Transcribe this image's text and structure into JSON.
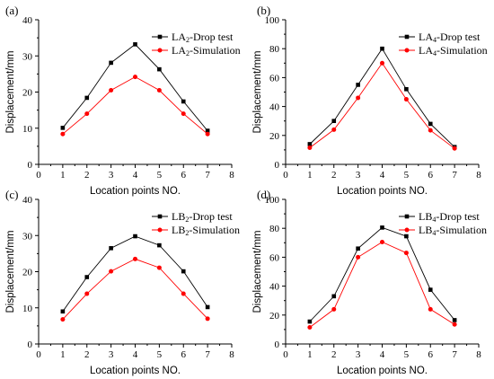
{
  "chart_data": [
    {
      "type": "line",
      "panel": "(a)",
      "xlabel": "Location points NO.",
      "ylabel": "Displacement/mm",
      "xlim": [
        0,
        8
      ],
      "ylim": [
        0,
        40
      ],
      "xticks": [
        0,
        1,
        2,
        3,
        4,
        5,
        6,
        7,
        8
      ],
      "yticks": [
        0,
        10,
        20,
        30,
        40
      ],
      "grid": false,
      "legend_position": "top-right",
      "series": [
        {
          "name": "LA2-Drop test",
          "color": "#000000",
          "marker": "square",
          "x": [
            1,
            2,
            3,
            4,
            5,
            6,
            7
          ],
          "values": [
            10.1,
            18.4,
            28.1,
            33.2,
            26.3,
            17.4,
            9.3
          ]
        },
        {
          "name": "LA2-Simulation",
          "color": "#ff0000",
          "marker": "circle",
          "x": [
            1,
            2,
            3,
            4,
            5,
            6,
            7
          ],
          "values": [
            8.4,
            14.0,
            20.5,
            24.2,
            20.5,
            14.0,
            8.4
          ]
        }
      ]
    },
    {
      "type": "line",
      "panel": "(b)",
      "xlabel": "Location points NO.",
      "ylabel": "Displacement/mm",
      "xlim": [
        0,
        8
      ],
      "ylim": [
        0,
        100
      ],
      "xticks": [
        0,
        1,
        2,
        3,
        4,
        5,
        6,
        7,
        8
      ],
      "yticks": [
        0,
        20,
        40,
        60,
        80,
        100
      ],
      "grid": false,
      "legend_position": "top-right",
      "series": [
        {
          "name": "LA4-Drop test",
          "color": "#000000",
          "marker": "square",
          "x": [
            1,
            2,
            3,
            4,
            5,
            6,
            7
          ],
          "values": [
            14.0,
            30.0,
            55.0,
            80.0,
            52.0,
            28.0,
            12.0
          ]
        },
        {
          "name": "LA4-Simulation",
          "color": "#ff0000",
          "marker": "circle",
          "x": [
            1,
            2,
            3,
            4,
            5,
            6,
            7
          ],
          "values": [
            11.5,
            24.0,
            46.0,
            70.0,
            45.0,
            23.5,
            11.0
          ]
        }
      ]
    },
    {
      "type": "line",
      "panel": "(c)",
      "xlabel": "Location points NO.",
      "ylabel": "Displacement/mm",
      "xlim": [
        0,
        8
      ],
      "ylim": [
        0,
        40
      ],
      "xticks": [
        0,
        1,
        2,
        3,
        4,
        5,
        6,
        7,
        8
      ],
      "yticks": [
        0,
        10,
        20,
        30,
        40
      ],
      "grid": false,
      "legend_position": "top-right",
      "series": [
        {
          "name": "LB2-Drop test",
          "color": "#000000",
          "marker": "square",
          "x": [
            1,
            2,
            3,
            4,
            5,
            6,
            7
          ],
          "values": [
            9.0,
            18.5,
            26.5,
            29.8,
            27.3,
            20.1,
            10.2
          ]
        },
        {
          "name": "LB2-Simulation",
          "color": "#ff0000",
          "marker": "circle",
          "x": [
            1,
            2,
            3,
            4,
            5,
            6,
            7
          ],
          "values": [
            6.8,
            13.9,
            20.1,
            23.5,
            21.1,
            13.9,
            7.0
          ]
        }
      ]
    },
    {
      "type": "line",
      "panel": "(d)",
      "xlabel": "Location points NO.",
      "ylabel": "Displacement/mm",
      "xlim": [
        0,
        8
      ],
      "ylim": [
        0,
        100
      ],
      "xticks": [
        0,
        1,
        2,
        3,
        4,
        5,
        6,
        7,
        8
      ],
      "yticks": [
        0,
        20,
        40,
        60,
        80,
        100
      ],
      "grid": false,
      "legend_position": "top-right",
      "series": [
        {
          "name": "LB4-Drop test",
          "color": "#000000",
          "marker": "square",
          "x": [
            1,
            2,
            3,
            4,
            5,
            6,
            7
          ],
          "values": [
            15.5,
            33.0,
            66.0,
            80.5,
            74.5,
            37.5,
            16.5
          ]
        },
        {
          "name": "LB4-Simulation",
          "color": "#ff0000",
          "marker": "circle",
          "x": [
            1,
            2,
            3,
            4,
            5,
            6,
            7
          ],
          "values": [
            11.5,
            24.0,
            60.0,
            70.5,
            63.0,
            24.0,
            13.5
          ]
        }
      ]
    }
  ]
}
